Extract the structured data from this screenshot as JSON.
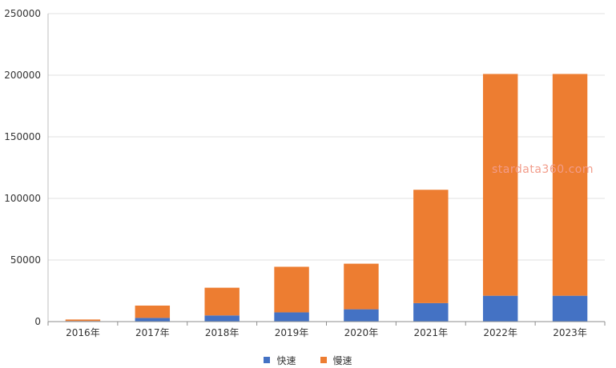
{
  "chart_data": {
    "type": "bar",
    "stacked": true,
    "categories": [
      "2016年",
      "2017年",
      "2018年",
      "2019年",
      "2020年",
      "2021年",
      "2022年",
      "2023年"
    ],
    "series": [
      {
        "name": "快速",
        "color": "#4472c4",
        "values": [
          500,
          3000,
          5000,
          7500,
          10000,
          15000,
          21000,
          21000
        ]
      },
      {
        "name": "慢速",
        "color": "#ed7d31",
        "values": [
          1200,
          10000,
          22500,
          37000,
          37000,
          92000,
          180000,
          180000
        ]
      }
    ],
    "ylim": [
      0,
      250000
    ],
    "yticks": [
      "0",
      "50000",
      "100000",
      "150000",
      "200000",
      "250000"
    ],
    "grid": true,
    "legend": "bottom-center",
    "watermark": "stardata360.com"
  }
}
